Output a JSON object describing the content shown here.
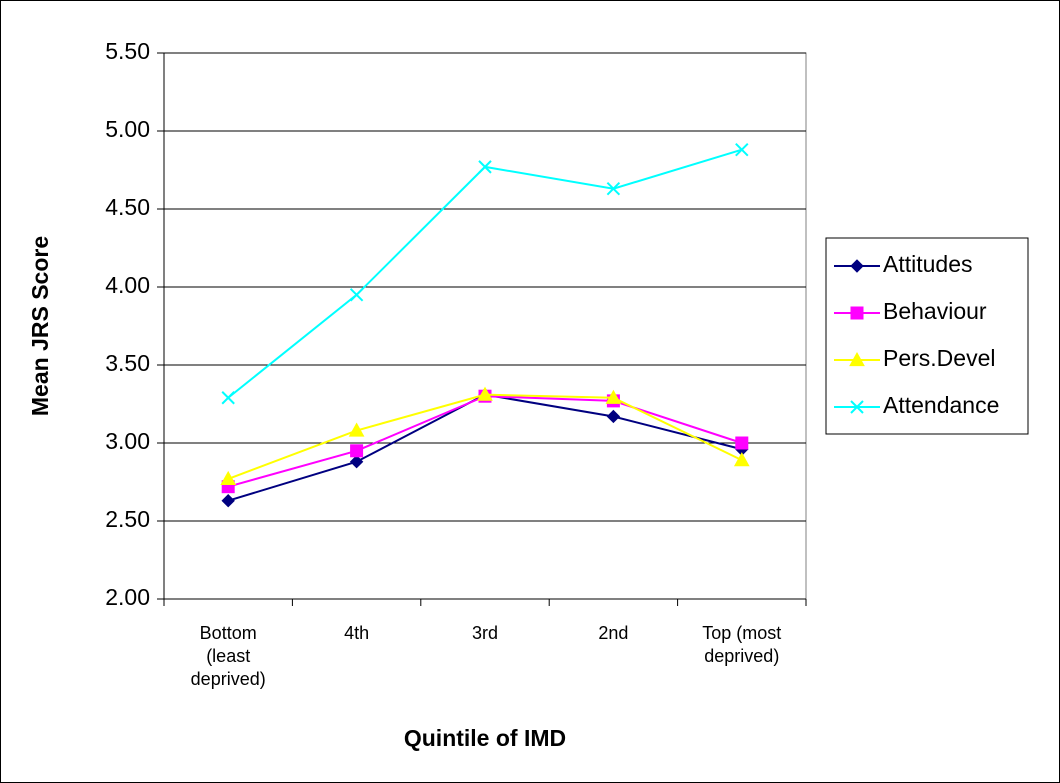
{
  "chart_data": {
    "type": "line",
    "title": "",
    "xlabel": "Quintile of IMD",
    "ylabel": "Mean JRS Score",
    "categories": [
      [
        "Bottom",
        "(least",
        "deprived)"
      ],
      [
        "4th"
      ],
      [
        "3rd"
      ],
      [
        "2nd"
      ],
      [
        "Top (most",
        "deprived)"
      ]
    ],
    "ylim": [
      2.0,
      5.5
    ],
    "yticks": [
      "2.00",
      "2.50",
      "3.00",
      "3.50",
      "4.00",
      "4.50",
      "5.00",
      "5.50"
    ],
    "grid": true,
    "legend_position": "right",
    "series": [
      {
        "name": "Attitudes",
        "values": [
          2.63,
          2.88,
          3.31,
          3.17,
          2.96
        ],
        "color": "#000080",
        "marker": "diamond"
      },
      {
        "name": "Behaviour",
        "values": [
          2.72,
          2.95,
          3.3,
          3.27,
          3.0
        ],
        "color": "#FF00FF",
        "marker": "square"
      },
      {
        "name": "Pers.Devel",
        "values": [
          2.77,
          3.08,
          3.31,
          3.29,
          2.89
        ],
        "color": "#FFFF00",
        "marker": "triangle"
      },
      {
        "name": "Attendance",
        "values": [
          3.29,
          3.95,
          4.77,
          4.63,
          4.88
        ],
        "color": "#00FFFF",
        "marker": "x"
      }
    ]
  }
}
